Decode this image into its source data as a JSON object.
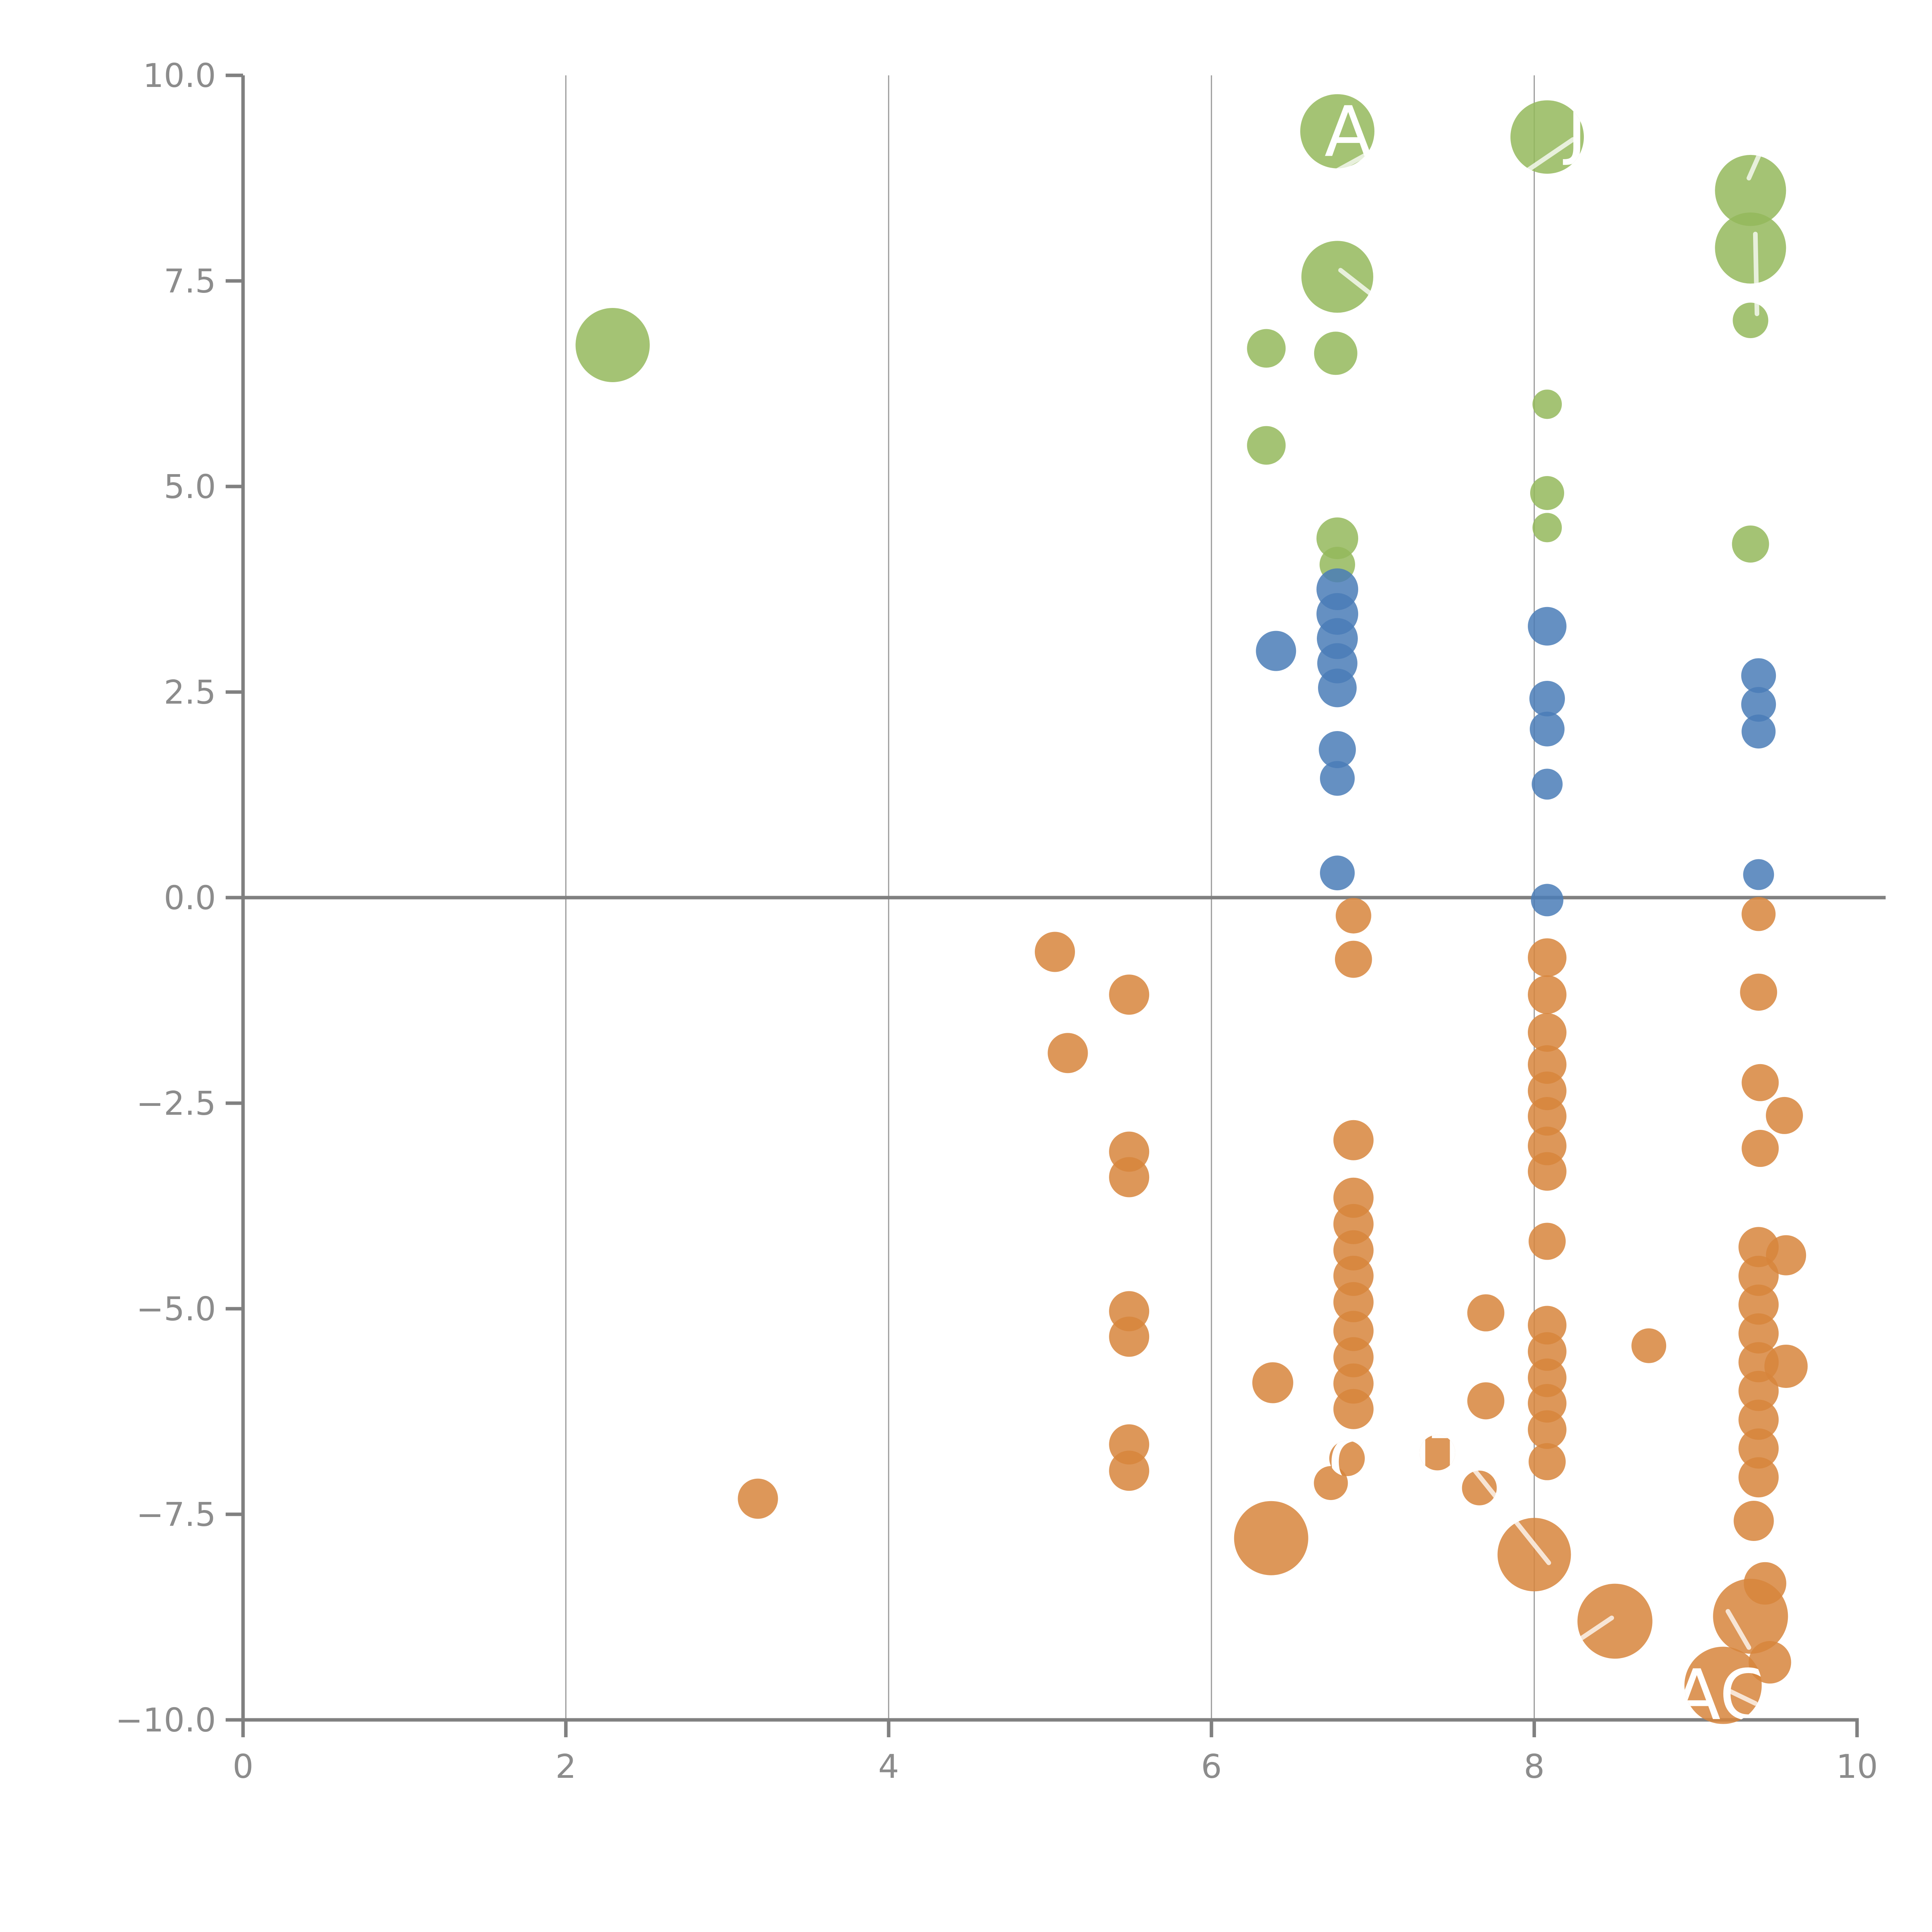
{
  "chart_data": {
    "type": "scatter",
    "title": "",
    "xlabel": "",
    "ylabel": "",
    "xlim": [
      0,
      10
    ],
    "ylim": [
      -10,
      10
    ],
    "x_ticks": [
      0,
      2,
      4,
      6,
      8,
      10
    ],
    "y_ticks": [
      10.0,
      7.5,
      5.0,
      2.5,
      0.0,
      -2.5,
      -5.0,
      -7.5,
      -10.0
    ],
    "x_tick_labels": [
      "0",
      "2",
      "4",
      "6",
      "8",
      "10"
    ],
    "y_tick_labels": [
      "10.0",
      "7.5",
      "5.0",
      "2.5",
      "0.0",
      "−2.5",
      "−5.0",
      "−7.5",
      "−10.0"
    ],
    "grid_x": [
      2,
      4,
      6,
      8
    ],
    "zero_line_y": 0,
    "grid_color": "#9a9a9a",
    "axis_color": "#808080",
    "tick_label_color": "#8c8c8c",
    "legend_position": "none",
    "series": [
      {
        "name": "green",
        "color": "#94B85C",
        "points": [
          [
            2.29,
            6.72,
            96
          ],
          [
            6.78,
            9.32,
            96
          ],
          [
            8.08,
            9.25,
            95
          ],
          [
            9.34,
            8.6,
            92
          ],
          [
            9.34,
            7.9,
            92
          ],
          [
            6.78,
            7.55,
            93
          ],
          [
            6.77,
            6.62,
            56
          ],
          [
            6.34,
            6.68,
            50
          ],
          [
            9.34,
            7.02,
            46
          ],
          [
            8.08,
            6.0,
            38
          ],
          [
            6.34,
            5.5,
            50
          ],
          [
            8.08,
            4.92,
            44
          ],
          [
            8.08,
            4.5,
            38
          ],
          [
            9.34,
            4.3,
            48
          ],
          [
            6.78,
            4.37,
            54
          ],
          [
            6.78,
            4.05,
            46
          ]
        ]
      },
      {
        "name": "blue",
        "color": "#4A7CB7",
        "points": [
          [
            6.4,
            3.0,
            52
          ],
          [
            6.78,
            3.75,
            54
          ],
          [
            6.78,
            3.45,
            54
          ],
          [
            6.78,
            3.15,
            53
          ],
          [
            6.78,
            2.85,
            52
          ],
          [
            6.78,
            2.55,
            50
          ],
          [
            6.78,
            1.8,
            48
          ],
          [
            6.78,
            1.45,
            45
          ],
          [
            6.78,
            0.3,
            45
          ],
          [
            8.08,
            3.3,
            50
          ],
          [
            8.08,
            2.42,
            46
          ],
          [
            8.08,
            2.05,
            45
          ],
          [
            8.08,
            1.38,
            40
          ],
          [
            8.08,
            -0.03,
            42
          ],
          [
            9.39,
            2.7,
            45
          ],
          [
            9.39,
            2.35,
            45
          ],
          [
            9.39,
            2.02,
            44
          ],
          [
            9.39,
            0.28,
            40
          ]
        ]
      },
      {
        "name": "orange",
        "color": "#D7853C",
        "points": [
          [
            5.03,
            -0.66,
            52
          ],
          [
            5.49,
            -1.18,
            52
          ],
          [
            5.11,
            -1.89,
            52
          ],
          [
            5.49,
            -3.09,
            52
          ],
          [
            5.49,
            -3.4,
            52
          ],
          [
            5.49,
            -5.03,
            52
          ],
          [
            5.49,
            -5.34,
            52
          ],
          [
            5.49,
            -6.65,
            52
          ],
          [
            5.49,
            -6.97,
            52
          ],
          [
            3.19,
            -7.31,
            52
          ],
          [
            6.88,
            -0.22,
            46
          ],
          [
            6.88,
            -0.75,
            48
          ],
          [
            6.88,
            -2.95,
            52
          ],
          [
            6.88,
            -3.65,
            52
          ],
          [
            6.88,
            -3.97,
            52
          ],
          [
            6.88,
            -4.29,
            52
          ],
          [
            6.88,
            -4.6,
            52
          ],
          [
            6.88,
            -4.92,
            52
          ],
          [
            6.88,
            -5.27,
            52
          ],
          [
            6.88,
            -5.59,
            52
          ],
          [
            6.88,
            -5.91,
            52
          ],
          [
            6.88,
            -6.22,
            52
          ],
          [
            6.38,
            -5.9,
            53
          ],
          [
            6.84,
            -6.82,
            46
          ],
          [
            7.4,
            -6.75,
            46
          ],
          [
            6.74,
            -7.12,
            44
          ],
          [
            7.7,
            -5.05,
            48
          ],
          [
            7.7,
            -6.12,
            48
          ],
          [
            7.66,
            -7.18,
            45
          ],
          [
            6.37,
            -7.79,
            96
          ],
          [
            8.0,
            -7.99,
            95
          ],
          [
            8.08,
            -0.73,
            50
          ],
          [
            8.08,
            -1.18,
            50
          ],
          [
            8.08,
            -1.64,
            50
          ],
          [
            8.08,
            -2.03,
            50
          ],
          [
            8.08,
            -2.35,
            50
          ],
          [
            8.08,
            -2.66,
            50
          ],
          [
            8.08,
            -3.02,
            50
          ],
          [
            8.08,
            -3.33,
            50
          ],
          [
            8.08,
            -4.18,
            48
          ],
          [
            8.08,
            -5.2,
            50
          ],
          [
            8.08,
            -5.52,
            50
          ],
          [
            8.08,
            -5.84,
            50
          ],
          [
            8.08,
            -6.15,
            50
          ],
          [
            8.08,
            -6.47,
            50
          ],
          [
            8.08,
            -6.86,
            48
          ],
          [
            8.71,
            -5.45,
            45
          ],
          [
            9.39,
            -0.2,
            44
          ],
          [
            9.39,
            -1.15,
            48
          ],
          [
            9.4,
            -2.25,
            48
          ],
          [
            9.55,
            -2.65,
            48
          ],
          [
            9.4,
            -3.05,
            48
          ],
          [
            9.39,
            -4.25,
            52
          ],
          [
            9.56,
            -4.35,
            52
          ],
          [
            9.39,
            -4.6,
            52
          ],
          [
            9.39,
            -4.95,
            52
          ],
          [
            9.39,
            -5.3,
            52
          ],
          [
            9.56,
            -5.7,
            56
          ],
          [
            9.39,
            -5.65,
            52
          ],
          [
            9.39,
            -6.0,
            52
          ],
          [
            9.39,
            -6.35,
            52
          ],
          [
            9.39,
            -6.7,
            52
          ],
          [
            9.39,
            -7.05,
            52
          ],
          [
            9.36,
            -7.58,
            52
          ],
          [
            9.43,
            -8.34,
            55
          ],
          [
            9.34,
            -8.74,
            97
          ],
          [
            8.5,
            -8.8,
            97
          ],
          [
            9.17,
            -9.58,
            100
          ],
          [
            9.46,
            -9.3,
            55
          ]
        ]
      }
    ],
    "annotations": {
      "label_color": "#ffffff",
      "labels": [
        {
          "text": "AB",
          "x": 6.7,
          "y": 9.02,
          "clip": {
            "x": 6.78,
            "y": 9.32,
            "r": 96
          }
        },
        {
          "text": "J",
          "x": 8.2,
          "y": 9.08,
          "clip": {
            "x": 8.08,
            "y": 9.25,
            "r": 95
          }
        },
        {
          "text": "C",
          "x": 6.72,
          "y": -7.17,
          "clip": {
            "x": 6.84,
            "y": -6.82,
            "r": 46
          }
        },
        {
          "text": "IT",
          "x": 7.24,
          "y": -7.12,
          "clip": {
            "x": 7.4,
            "y": -6.75,
            "r": 46
          }
        },
        {
          "text": "AC",
          "x": 8.86,
          "y": -9.99,
          "clip": {
            "x": 9.17,
            "y": -9.58,
            "r": 100
          }
        }
      ],
      "leader_lines": [
        {
          "x1": 6.61,
          "y1": 8.66,
          "x2": 7.0,
          "y2": 9.08
        },
        {
          "x1": 7.94,
          "y1": 8.82,
          "x2": 8.24,
          "y2": 9.22
        },
        {
          "x1": 6.8,
          "y1": 7.63,
          "x2": 7.08,
          "y2": 7.2
        },
        {
          "x1": 9.33,
          "y1": 8.75,
          "x2": 9.42,
          "y2": 9.15
        },
        {
          "x1": 9.37,
          "y1": 8.07,
          "x2": 9.38,
          "y2": 7.1
        },
        {
          "x1": 7.6,
          "y1": -6.89,
          "x2": 8.09,
          "y2": -8.09
        },
        {
          "x1": 8.26,
          "y1": -9.05,
          "x2": 8.48,
          "y2": -8.76
        },
        {
          "x1": 9.2,
          "y1": -8.68,
          "x2": 9.33,
          "y2": -9.12
        },
        {
          "x1": 9.19,
          "y1": -9.63,
          "x2": 9.37,
          "y2": -9.8
        }
      ]
    }
  }
}
